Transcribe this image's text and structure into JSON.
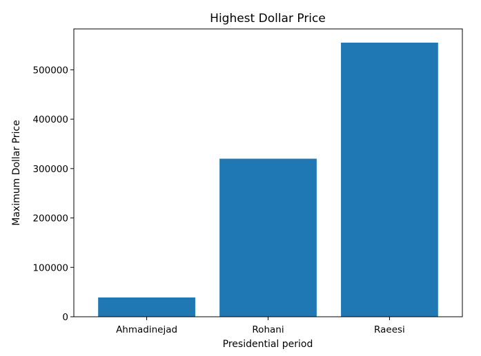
{
  "chart_data": {
    "type": "bar",
    "title": "Highest Dollar Price",
    "xlabel": "Presidential period",
    "ylabel": "Maximum Dollar Price",
    "categories": [
      "Ahmadinejad",
      "Rohani",
      "Raeesi"
    ],
    "values": [
      39000,
      320000,
      555000
    ],
    "ylim": [
      0,
      582750
    ],
    "yticks": [
      0,
      100000,
      200000,
      300000,
      400000,
      500000
    ],
    "ytick_labels": [
      "0",
      "100000",
      "200000",
      "300000",
      "400000",
      "500000"
    ],
    "bar_color": "#1f77b4",
    "grid": false,
    "legend": "none"
  }
}
